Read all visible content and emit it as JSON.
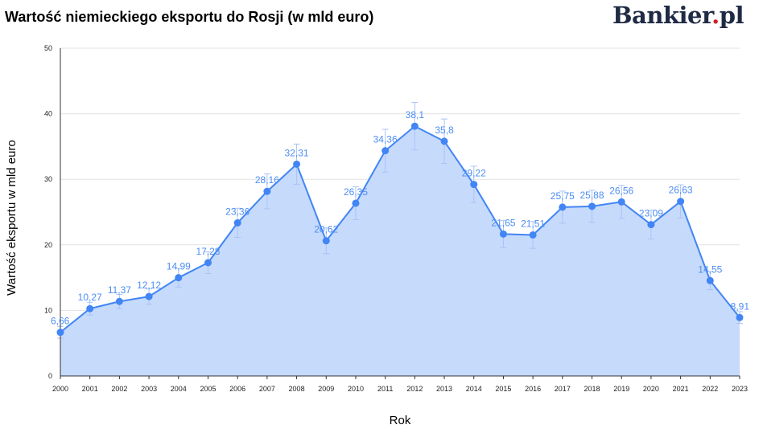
{
  "header": {
    "title": "Wartość niemieckiego eksportu do Rosji (w mld euro)",
    "brand_name": "Bankier",
    "brand_dot": ".",
    "brand_suffix": "pl"
  },
  "colors": {
    "line": "#4285f4",
    "area": "#c6dafc",
    "point": "#4285f4",
    "label": "#4d8df3",
    "error_bar": "#a9c4f5",
    "grid": "#e3e3e3",
    "axis": "#333333",
    "brand_text": "#1f2a44",
    "brand_dot": "#d11f27"
  },
  "chart_data": {
    "type": "area",
    "title": "Wartość niemieckiego eksportu do Rosji (w mld euro)",
    "xlabel": "Rok",
    "ylabel": "Wartość eksportu w mld euro",
    "ylim": [
      0,
      50
    ],
    "yticks": [
      "0",
      "10",
      "20",
      "30",
      "40",
      "50"
    ],
    "grid": true,
    "legend": "none",
    "error_bars": true,
    "categories": [
      "2000",
      "2001",
      "2002",
      "2003",
      "2004",
      "2005",
      "2006",
      "2007",
      "2008",
      "2009",
      "2010",
      "2011",
      "2012",
      "2013",
      "2014",
      "2015",
      "2016",
      "2017",
      "2018",
      "2019",
      "2020",
      "2021",
      "2022",
      "2023"
    ],
    "values": [
      6.66,
      10.27,
      11.37,
      12.12,
      14.99,
      17.28,
      23.36,
      28.16,
      32.31,
      20.62,
      26.35,
      34.36,
      38.1,
      35.8,
      29.22,
      21.65,
      21.51,
      25.75,
      25.88,
      26.56,
      23.09,
      26.63,
      14.55,
      8.91
    ],
    "data_labels": [
      "6,66",
      "10,27",
      "11,37",
      "12,12",
      "14,99",
      "17,28",
      "23,36",
      "28,16",
      "32,31",
      "20,62",
      "26,35",
      "34,36",
      "38,1",
      "35,8",
      "29,22",
      "21,65",
      "21,51",
      "25,75",
      "25,88",
      "26,56",
      "23,09",
      "26,63",
      "14,55",
      "8,91"
    ]
  }
}
